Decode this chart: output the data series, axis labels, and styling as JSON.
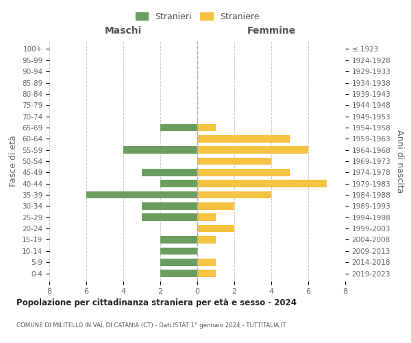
{
  "age_groups": [
    "100+",
    "95-99",
    "90-94",
    "85-89",
    "80-84",
    "75-79",
    "70-74",
    "65-69",
    "60-64",
    "55-59",
    "50-54",
    "45-49",
    "40-44",
    "35-39",
    "30-34",
    "25-29",
    "20-24",
    "15-19",
    "10-14",
    "5-9",
    "0-4"
  ],
  "birth_years": [
    "≤ 1923",
    "1924-1928",
    "1929-1933",
    "1934-1938",
    "1939-1943",
    "1944-1948",
    "1949-1953",
    "1954-1958",
    "1959-1963",
    "1964-1968",
    "1969-1973",
    "1974-1978",
    "1979-1983",
    "1984-1988",
    "1989-1993",
    "1994-1998",
    "1999-2003",
    "2004-2008",
    "2009-2013",
    "2014-2018",
    "2019-2023"
  ],
  "stranieri": [
    0,
    0,
    0,
    0,
    0,
    0,
    0,
    2,
    0,
    4,
    0,
    3,
    2,
    6,
    3,
    3,
    0,
    2,
    2,
    2,
    2
  ],
  "straniere": [
    0,
    0,
    0,
    0,
    0,
    0,
    0,
    1,
    5,
    6,
    4,
    5,
    7,
    4,
    2,
    1,
    2,
    1,
    0,
    1,
    1
  ],
  "color_stranieri": "#6a9e5e",
  "color_straniere": "#f5c242",
  "title": "Popolazione per cittadinanza straniera per età e sesso - 2024",
  "subtitle": "COMUNE DI MILITELLO IN VAL DI CATANIA (CT) - Dati ISTAT 1° gennaio 2024 - TUTTITALIA.IT",
  "xlabel_left": "Maschi",
  "xlabel_right": "Femmine",
  "ylabel_left": "Fasce di età",
  "ylabel_right": "Anni di nascita",
  "legend_stranieri": "Stranieri",
  "legend_straniere": "Straniere",
  "xlim": 8,
  "background_color": "#ffffff",
  "grid_color": "#cccccc"
}
